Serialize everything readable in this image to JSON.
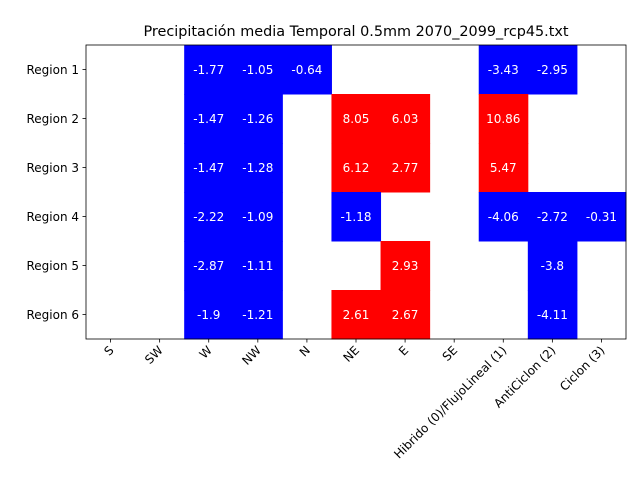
{
  "chart_data": {
    "type": "heatmap",
    "title": "Precipitación media Temporal 0.5mm 2070_2099_rcp45.txt",
    "xlabel": "",
    "ylabel": "",
    "x_categories": [
      "S",
      "SW",
      "W",
      "NW",
      "N",
      "NE",
      "E",
      "SE",
      "Hibrido (0)/FlujoLineal (1)",
      "AntiCiclon (2)",
      "Ciclon (3)"
    ],
    "y_categories": [
      "Region 1",
      "Region 2",
      "Region 3",
      "Region 4",
      "Region 5",
      "Region 6"
    ],
    "values": [
      [
        null,
        null,
        -1.77,
        -1.05,
        -0.64,
        null,
        null,
        null,
        -3.43,
        -2.95,
        null
      ],
      [
        null,
        null,
        -1.47,
        -1.26,
        null,
        8.05,
        6.03,
        null,
        10.86,
        null,
        null
      ],
      [
        null,
        null,
        -1.47,
        -1.28,
        null,
        6.12,
        2.77,
        null,
        5.47,
        null,
        null
      ],
      [
        null,
        null,
        -2.22,
        -1.09,
        null,
        -1.18,
        null,
        null,
        -4.06,
        -2.72,
        -0.31
      ],
      [
        null,
        null,
        -2.87,
        -1.11,
        null,
        null,
        2.93,
        null,
        null,
        -3.8,
        null
      ],
      [
        null,
        null,
        -1.9,
        -1.21,
        null,
        2.61,
        2.67,
        null,
        null,
        -4.11,
        null
      ]
    ],
    "colors": {
      "negative": "#0000ff",
      "positive": "#ff0000",
      "empty": "#ffffff"
    },
    "grid": false
  }
}
